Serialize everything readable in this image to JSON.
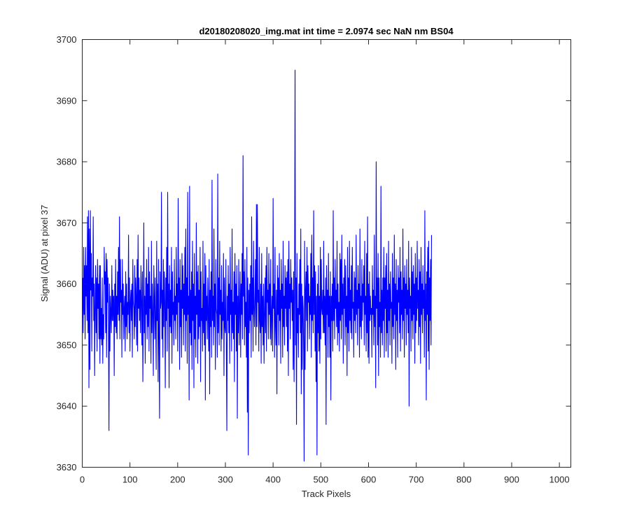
{
  "chart_data": {
    "type": "line",
    "title": "d20180208020_img.mat int time = 2.0974 sec  NaN nm BS04",
    "xlabel": "Track Pixels",
    "ylabel": "Signal (ADU) at pixel 37",
    "xlim": [
      0,
      1024
    ],
    "ylim": [
      3630,
      3700
    ],
    "xticks": [
      "0",
      "100",
      "200",
      "300",
      "400",
      "500",
      "600",
      "700",
      "800",
      "900",
      "1000"
    ],
    "yticks": [
      "3630",
      "3640",
      "3650",
      "3660",
      "3670",
      "3680",
      "3690",
      "3700"
    ],
    "grid": false,
    "legend": "none",
    "line_color": "#0000ff",
    "series": [
      {
        "x_start": 1,
        "x_step": 1,
        "values": [
          3661,
          3652,
          3666,
          3655,
          3663,
          3651,
          3666,
          3658,
          3663,
          3654,
          3671,
          3652,
          3672,
          3643,
          3669,
          3646,
          3672,
          3659,
          3665,
          3649,
          3661,
          3658,
          3671,
          3654,
          3660,
          3645,
          3656,
          3663,
          3652,
          3661,
          3649,
          3664,
          3656,
          3660,
          3651,
          3663,
          3647,
          3663,
          3651,
          3656,
          3650,
          3661,
          3647,
          3655,
          3651,
          3666,
          3660,
          3662,
          3652,
          3665,
          3648,
          3664,
          3657,
          3661,
          3652,
          3636,
          3660,
          3649,
          3658,
          3655,
          3652,
          3663,
          3654,
          3659,
          3654,
          3658,
          3645,
          3660,
          3653,
          3664,
          3652,
          3658,
          3651,
          3662,
          3655,
          3666,
          3654,
          3671,
          3651,
          3664,
          3657,
          3659,
          3648,
          3664,
          3655,
          3660,
          3651,
          3656,
          3658,
          3649,
          3662,
          3653,
          3660,
          3651,
          3657,
          3655,
          3668,
          3652,
          3661,
          3649,
          3657,
          3659,
          3654,
          3660,
          3648,
          3664,
          3657,
          3656,
          3651,
          3663,
          3653,
          3661,
          3658,
          3650,
          3664,
          3649,
          3668,
          3656,
          3661,
          3654,
          3659,
          3652,
          3663,
          3657,
          3650,
          3662,
          3644,
          3655,
          3670,
          3652,
          3658,
          3647,
          3661,
          3655,
          3664,
          3651,
          3660,
          3653,
          3666,
          3649,
          3662,
          3656,
          3658,
          3647,
          3667,
          3652,
          3660,
          3655,
          3645,
          3663,
          3658,
          3651,
          3661,
          3653,
          3646,
          3667,
          3654,
          3660,
          3644,
          3664,
          3651,
          3638,
          3662,
          3656,
          3657,
          3675,
          3651,
          3659,
          3648,
          3664,
          3653,
          3662,
          3657,
          3643,
          3661,
          3654,
          3666,
          3649,
          3675,
          3656,
          3660,
          3643,
          3663,
          3653,
          3659,
          3652,
          3666,
          3647,
          3662,
          3655,
          3657,
          3650,
          3664,
          3654,
          3658,
          3651,
          3666,
          3655,
          3660,
          3649,
          3674,
          3657,
          3661,
          3646,
          3664,
          3653,
          3659,
          3648,
          3665,
          3656,
          3663,
          3650,
          3660,
          3655,
          3666,
          3649,
          3669,
          3654,
          3661,
          3647,
          3675,
          3655,
          3658,
          3641,
          3676,
          3652,
          3659,
          3650,
          3662,
          3646,
          3667,
          3654,
          3660,
          3643,
          3665,
          3651,
          3658,
          3648,
          3670,
          3655,
          3662,
          3647,
          3663,
          3651,
          3659,
          3653,
          3666,
          3644,
          3662,
          3654,
          3656,
          3649,
          3667,
          3652,
          3660,
          3650,
          3665,
          3641,
          3663,
          3654,
          3658,
          3651,
          3661,
          3655,
          3649,
          3664,
          3642,
          3659,
          3653,
          3662,
          3648,
          3677,
          3654,
          3658,
          3650,
          3669,
          3653,
          3660,
          3646,
          3664,
          3656,
          3655,
          3648,
          3678,
          3652,
          3661,
          3650,
          3667,
          3655,
          3659,
          3649,
          3663,
          3651,
          3657,
          3654,
          3665,
          3645,
          3661,
          3653,
          3652,
          3664,
          3650,
          3636,
          3658,
          3654,
          3663,
          3652,
          3660,
          3647,
          3666,
          3655,
          3659,
          3649,
          3669,
          3652,
          3657,
          3651,
          3662,
          3644,
          3665,
          3655,
          3660,
          3649,
          3663,
          3638,
          3658,
          3652,
          3664,
          3650,
          3656,
          3662,
          3648,
          3660,
          3655,
          3665,
          3651,
          3681,
          3658,
          3662,
          3650,
          3664,
          3653,
          3657,
          3648,
          3666,
          3639,
          3661,
          3632,
          3659,
          3652,
          3660,
          3654,
          3663,
          3648,
          3671,
          3655,
          3661,
          3649,
          3667,
          3656,
          3653,
          3658,
          3664,
          3650,
          3673,
          3653,
          3673,
          3657,
          3659,
          3649,
          3666,
          3654,
          3652,
          3660,
          3647,
          3665,
          3653,
          3658,
          3650,
          3660,
          3647,
          3655,
          3661,
          3652,
          3663,
          3649,
          3666,
          3657,
          3659,
          3651,
          3665,
          3655,
          3660,
          3651,
          3664,
          3650,
          3655,
          3658,
          3649,
          3674,
          3656,
          3660,
          3648,
          3666,
          3653,
          3650,
          3659,
          3642,
          3663,
          3655,
          3661,
          3650,
          3665,
          3654,
          3659,
          3647,
          3664,
          3656,
          3660,
          3648,
          3667,
          3653,
          3658,
          3650,
          3663,
          3656,
          3661,
          3653,
          3662,
          3649,
          3664,
          3645,
          3667,
          3656,
          3660,
          3651,
          3664,
          3657,
          3661,
          3654,
          3659,
          3646,
          3662,
          3644,
          3660,
          3695,
          3650,
          3661,
          3637,
          3665,
          3652,
          3656,
          3648,
          3660,
          3655,
          3664,
          3652,
          3669,
          3642,
          3660,
          3646,
          3658,
          3656,
          3649,
          3631,
          3667,
          3646,
          3659,
          3662,
          3654,
          3666,
          3649,
          3663,
          3657,
          3660,
          3651,
          3658,
          3655,
          3665,
          3648,
          3668,
          3654,
          3661,
          3652,
          3672,
          3655,
          3663,
          3649,
          3662,
          3644,
          3658,
          3632,
          3660,
          3652,
          3663,
          3649,
          3658,
          3647,
          3666,
          3651,
          3664,
          3656,
          3655,
          3659,
          3652,
          3667,
          3652,
          3658,
          3650,
          3661,
          3637,
          3663,
          3655,
          3659,
          3648,
          3665,
          3653,
          3658,
          3648,
          3662,
          3641,
          3658,
          3654,
          3660,
          3649,
          3672,
          3654,
          3661,
          3651,
          3664,
          3656,
          3659,
          3653,
          3667,
          3650,
          3660,
          3652,
          3657,
          3649,
          3665,
          3654,
          3664,
          3651,
          3668,
          3655,
          3660,
          3647,
          3661,
          3656,
          3664,
          3650,
          3663,
          3653,
          3658,
          3645,
          3666,
          3652,
          3661,
          3649,
          3667,
          3654,
          3659,
          3652,
          3663,
          3651,
          3666,
          3656,
          3657,
          3648,
          3662,
          3654,
          3661,
          3652,
          3668,
          3655,
          3659,
          3650,
          3663,
          3656,
          3660,
          3648,
          3669,
          3653,
          3658,
          3651,
          3664,
          3654,
          3660,
          3657,
          3663,
          3650,
          3667,
          3655,
          3658,
          3649,
          3665,
          3652,
          3671,
          3648,
          3660,
          3647,
          3662,
          3654,
          3658,
          3655,
          3656,
          3648,
          3663,
          3655,
          3659,
          3650,
          3668,
          3653,
          3658,
          3643,
          3680,
          3656,
          3661,
          3650,
          3665,
          3645,
          3661,
          3653,
          3657,
          3648,
          3676,
          3652,
          3659,
          3650,
          3661,
          3654,
          3666,
          3648,
          3661,
          3656,
          3663,
          3649,
          3665,
          3652,
          3659,
          3648,
          3667,
          3654,
          3660,
          3650,
          3662,
          3656,
          3657,
          3647,
          3665,
          3653,
          3661,
          3651,
          3668,
          3655,
          3660,
          3646,
          3664,
          3654,
          3659,
          3648,
          3663,
          3657,
          3661,
          3652,
          3666,
          3649,
          3662,
          3655,
          3659,
          3651,
          3669,
          3654,
          3661,
          3648,
          3663,
          3656,
          3660,
          3650,
          3664,
          3655,
          3659,
          3652,
          3667,
          3640,
          3661,
          3656,
          3658,
          3649,
          3666,
          3654,
          3662,
          3651,
          3663,
          3655,
          3660,
          3647,
          3665,
          3652,
          3661,
          3654,
          3667,
          3656,
          3659,
          3650,
          3664,
          3653,
          3662,
          3647,
          3666,
          3655,
          3660,
          3652,
          3663,
          3656,
          3659,
          3648,
          3672,
          3654,
          3660,
          3641,
          3662,
          3655,
          3666,
          3649,
          3667,
          3646,
          3661,
          3654,
          3664,
          3650,
          3668
        ]
      }
    ]
  }
}
